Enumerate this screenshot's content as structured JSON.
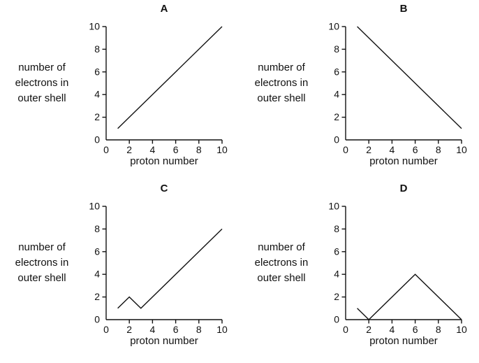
{
  "figure": {
    "background": "#ffffff",
    "line_color": "#111111",
    "text_color": "#111111"
  },
  "axis_labels": {
    "y_lines": [
      "number of",
      "electrons in",
      "outer shell"
    ],
    "x": "proton number"
  },
  "chart_data": [
    {
      "type": "line",
      "title": "A",
      "xlabel": "proton number",
      "ylabel": "number of electrons in outer shell",
      "xlim": [
        0,
        10
      ],
      "ylim": [
        0,
        10
      ],
      "xticks": [
        0,
        2,
        4,
        6,
        8,
        10
      ],
      "yticks": [
        0,
        2,
        4,
        6,
        8,
        10
      ],
      "grid": false,
      "legend": false,
      "points": [
        [
          1,
          1
        ],
        [
          10,
          10
        ]
      ]
    },
    {
      "type": "line",
      "title": "B",
      "xlabel": "proton number",
      "ylabel": "number of electrons in outer shell",
      "xlim": [
        0,
        10
      ],
      "ylim": [
        0,
        10
      ],
      "xticks": [
        0,
        2,
        4,
        6,
        8,
        10
      ],
      "yticks": [
        0,
        2,
        4,
        6,
        8,
        10
      ],
      "grid": false,
      "legend": false,
      "points": [
        [
          1,
          10
        ],
        [
          10,
          1
        ]
      ]
    },
    {
      "type": "line",
      "title": "C",
      "xlabel": "proton number",
      "ylabel": "number of electrons in outer shell",
      "xlim": [
        0,
        10
      ],
      "ylim": [
        0,
        10
      ],
      "xticks": [
        0,
        2,
        4,
        6,
        8,
        10
      ],
      "yticks": [
        0,
        2,
        4,
        6,
        8,
        10
      ],
      "grid": false,
      "legend": false,
      "points": [
        [
          1,
          1
        ],
        [
          2,
          2
        ],
        [
          3,
          1
        ],
        [
          10,
          8
        ]
      ]
    },
    {
      "type": "line",
      "title": "D",
      "xlabel": "proton number",
      "ylabel": "number of electrons in outer shell",
      "xlim": [
        0,
        10
      ],
      "ylim": [
        0,
        10
      ],
      "xticks": [
        0,
        2,
        4,
        6,
        8,
        10
      ],
      "yticks": [
        0,
        2,
        4,
        6,
        8,
        10
      ],
      "grid": false,
      "legend": false,
      "points": [
        [
          1,
          1
        ],
        [
          2,
          0
        ],
        [
          6,
          4
        ],
        [
          10,
          0
        ]
      ]
    }
  ]
}
